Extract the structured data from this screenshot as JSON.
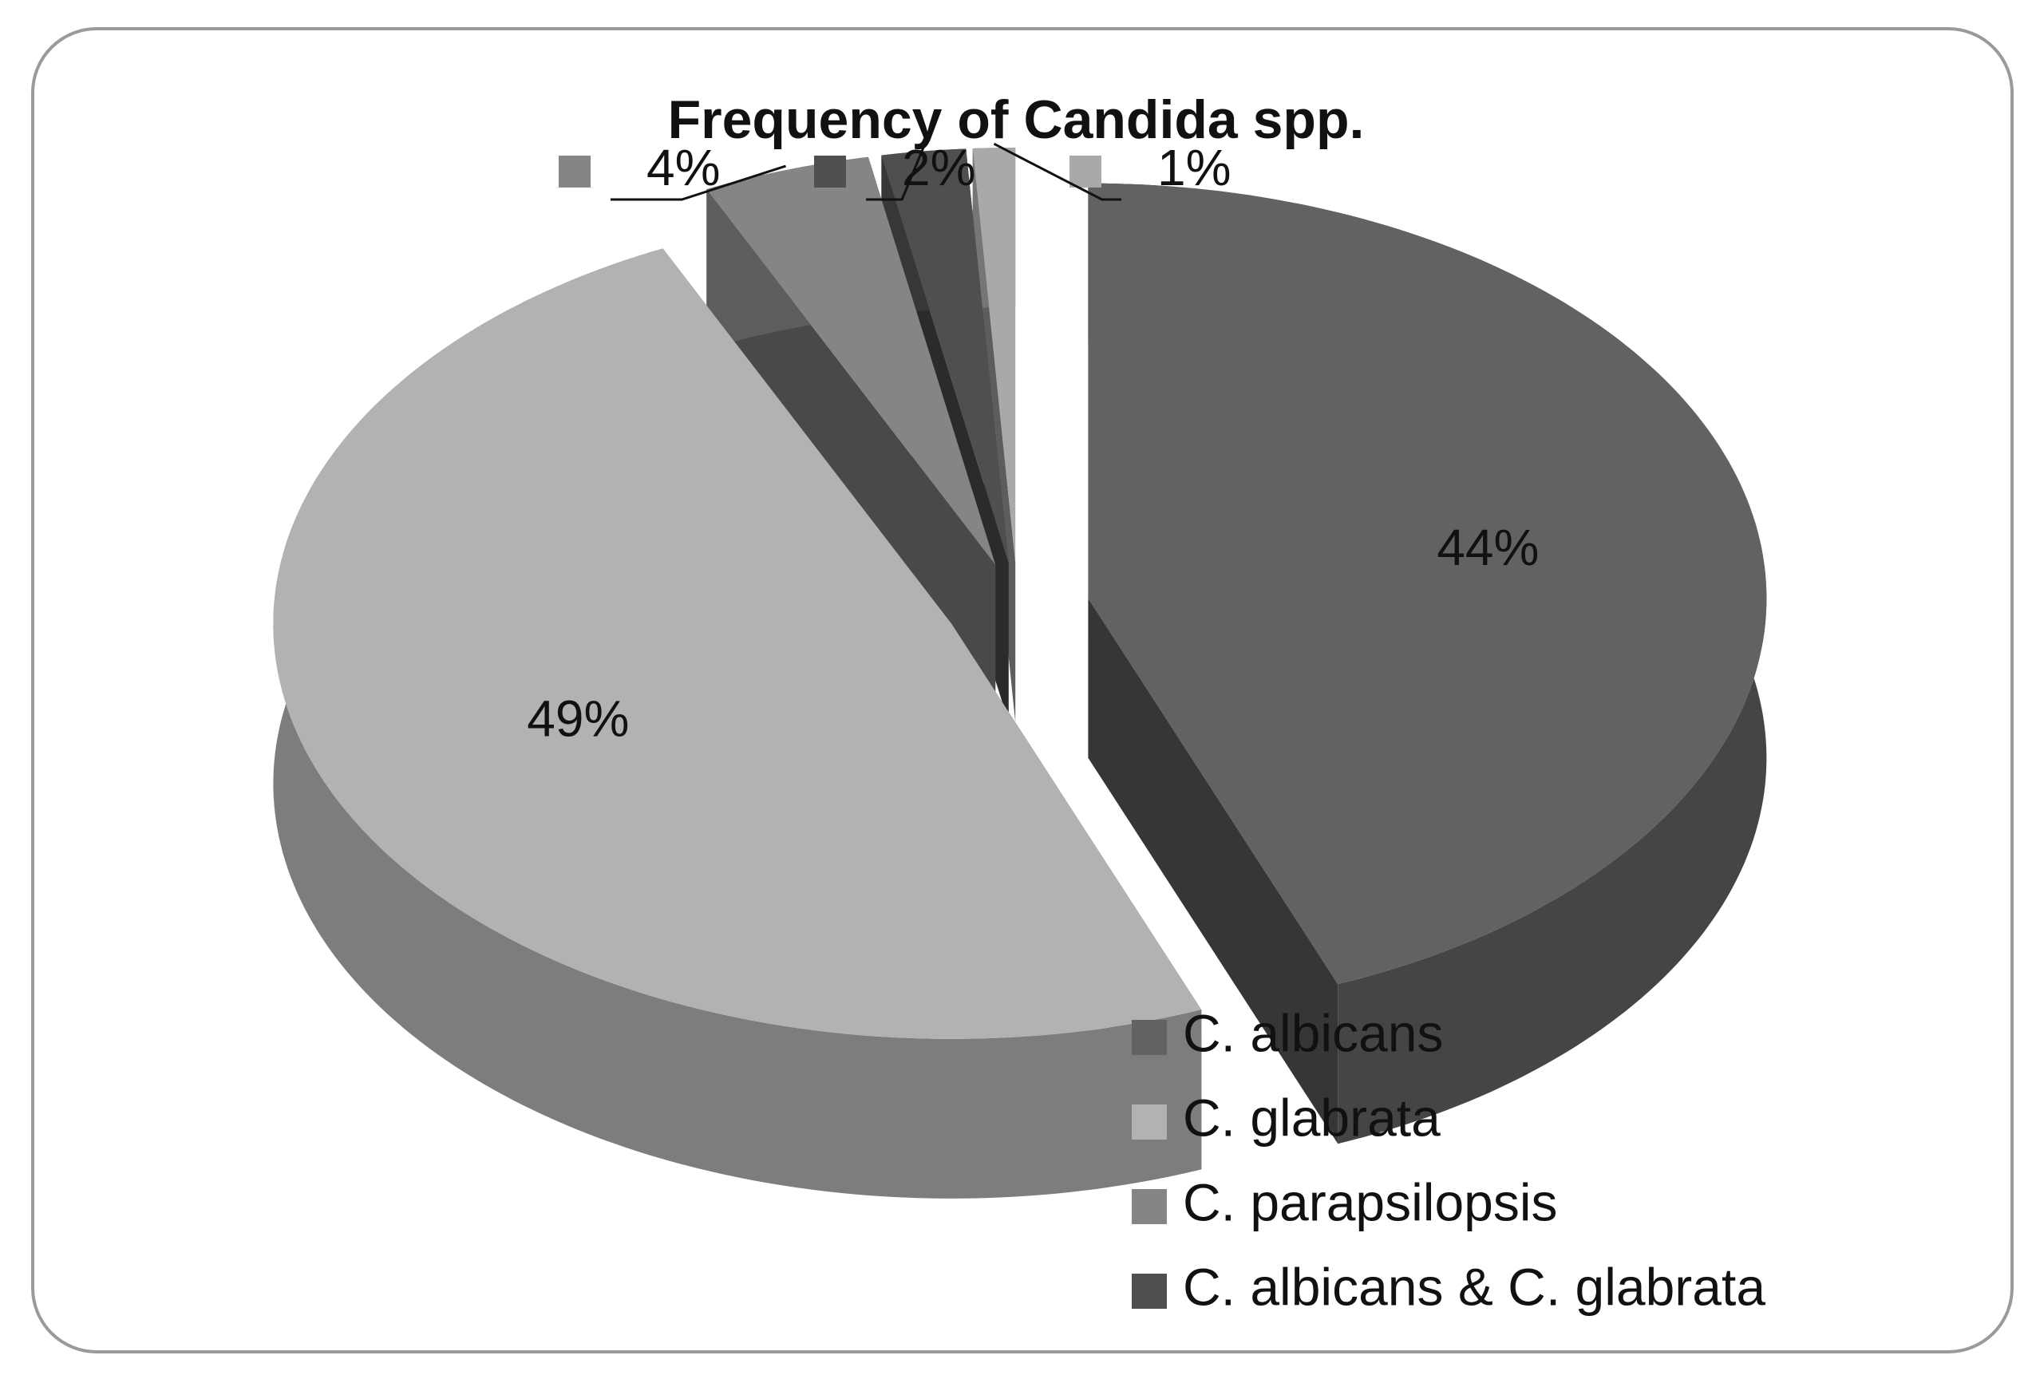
{
  "chart_data": {
    "type": "pie",
    "title": "Frequency of Candida spp.",
    "categories": [
      "C. albicans",
      "C. glabrata",
      "C. parapsilopsis",
      "C. albicans & C. glabrata",
      null
    ],
    "values": [
      44,
      49,
      4,
      2,
      1
    ],
    "value_labels": [
      "44%",
      "49%",
      "4%",
      "2%",
      "1%"
    ],
    "colors": [
      "#626262",
      "#b2b2b2",
      "#858585",
      "#4f4f4f",
      "#a9a9a9"
    ],
    "exploded": true,
    "three_d": true,
    "legend": "bottom-right"
  }
}
